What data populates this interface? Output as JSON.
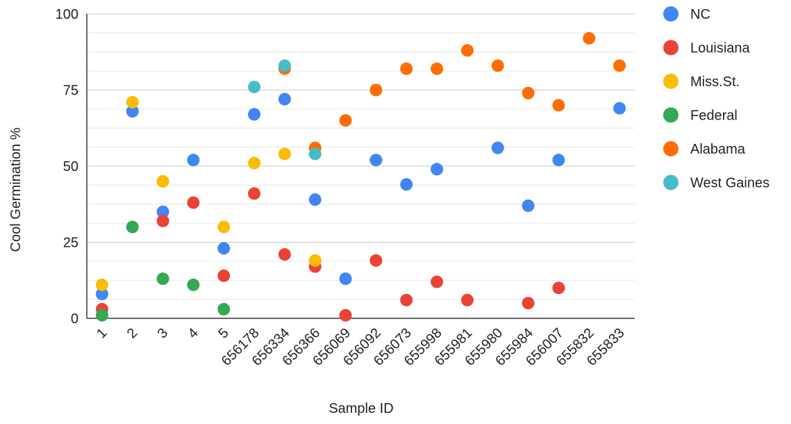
{
  "chart_data": {
    "type": "scatter",
    "title": "",
    "xlabel": "Sample ID",
    "ylabel": "Cool Germination %",
    "ylim": [
      0,
      100
    ],
    "yticks": [
      0,
      25,
      50,
      75,
      100
    ],
    "grid": true,
    "legend_position": "right",
    "categories": [
      "1",
      "2",
      "3",
      "4",
      "5",
      "656178",
      "656334",
      "656366",
      "656069",
      "656092",
      "656073",
      "655998",
      "655981",
      "655980",
      "655984",
      "656007",
      "655832",
      "655833"
    ],
    "series": [
      {
        "name": "NC",
        "color": "#4285F4",
        "values": [
          8,
          68,
          35,
          52,
          23,
          67,
          72,
          39,
          13,
          52,
          44,
          49,
          null,
          56,
          37,
          52,
          null,
          69
        ]
      },
      {
        "name": "Louisiana",
        "color": "#EA4335",
        "values": [
          3,
          null,
          32,
          38,
          14,
          41,
          21,
          17,
          1,
          19,
          6,
          12,
          6,
          null,
          5,
          10,
          null,
          null
        ]
      },
      {
        "name": "Miss.St.",
        "color": "#FBBC04",
        "values": [
          11,
          71,
          45,
          null,
          30,
          51,
          54,
          19,
          null,
          null,
          null,
          null,
          null,
          null,
          null,
          null,
          null,
          null
        ]
      },
      {
        "name": "Federal",
        "color": "#34A853",
        "values": [
          1,
          30,
          13,
          11,
          3,
          null,
          null,
          null,
          null,
          null,
          null,
          null,
          null,
          null,
          null,
          null,
          null,
          null
        ]
      },
      {
        "name": "Alabama",
        "color": "#FF6D01",
        "values": [
          null,
          null,
          null,
          null,
          null,
          null,
          82,
          56,
          65,
          75,
          82,
          82,
          88,
          83,
          74,
          70,
          92,
          83
        ]
      },
      {
        "name": "West Gaines",
        "color": "#46BDC6",
        "values": [
          null,
          null,
          null,
          null,
          null,
          76,
          83,
          54,
          null,
          null,
          null,
          null,
          null,
          null,
          null,
          null,
          null,
          null
        ]
      }
    ]
  }
}
